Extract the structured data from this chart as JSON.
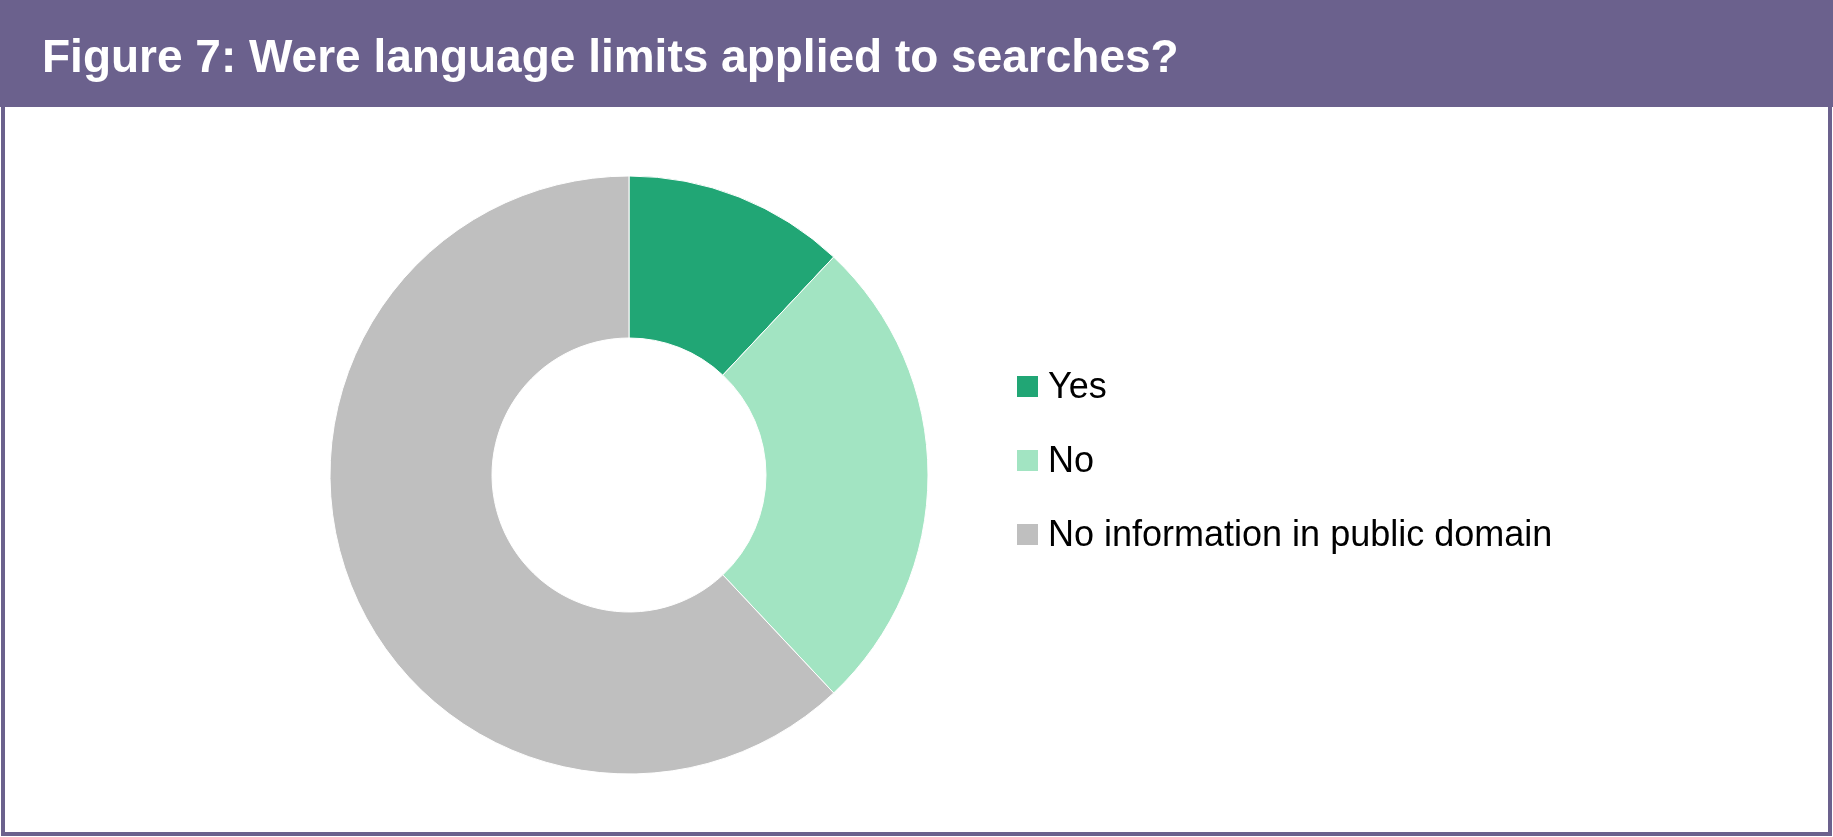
{
  "chart_data": {
    "type": "donut",
    "title": "Figure 7: Were language limits applied to searches?",
    "categories": [
      "Yes",
      "No",
      "No information in public domain"
    ],
    "values": [
      12,
      26,
      62
    ],
    "colors": [
      "#21a675",
      "#a2e4c2",
      "#bfbfbf"
    ],
    "legend": "right"
  }
}
